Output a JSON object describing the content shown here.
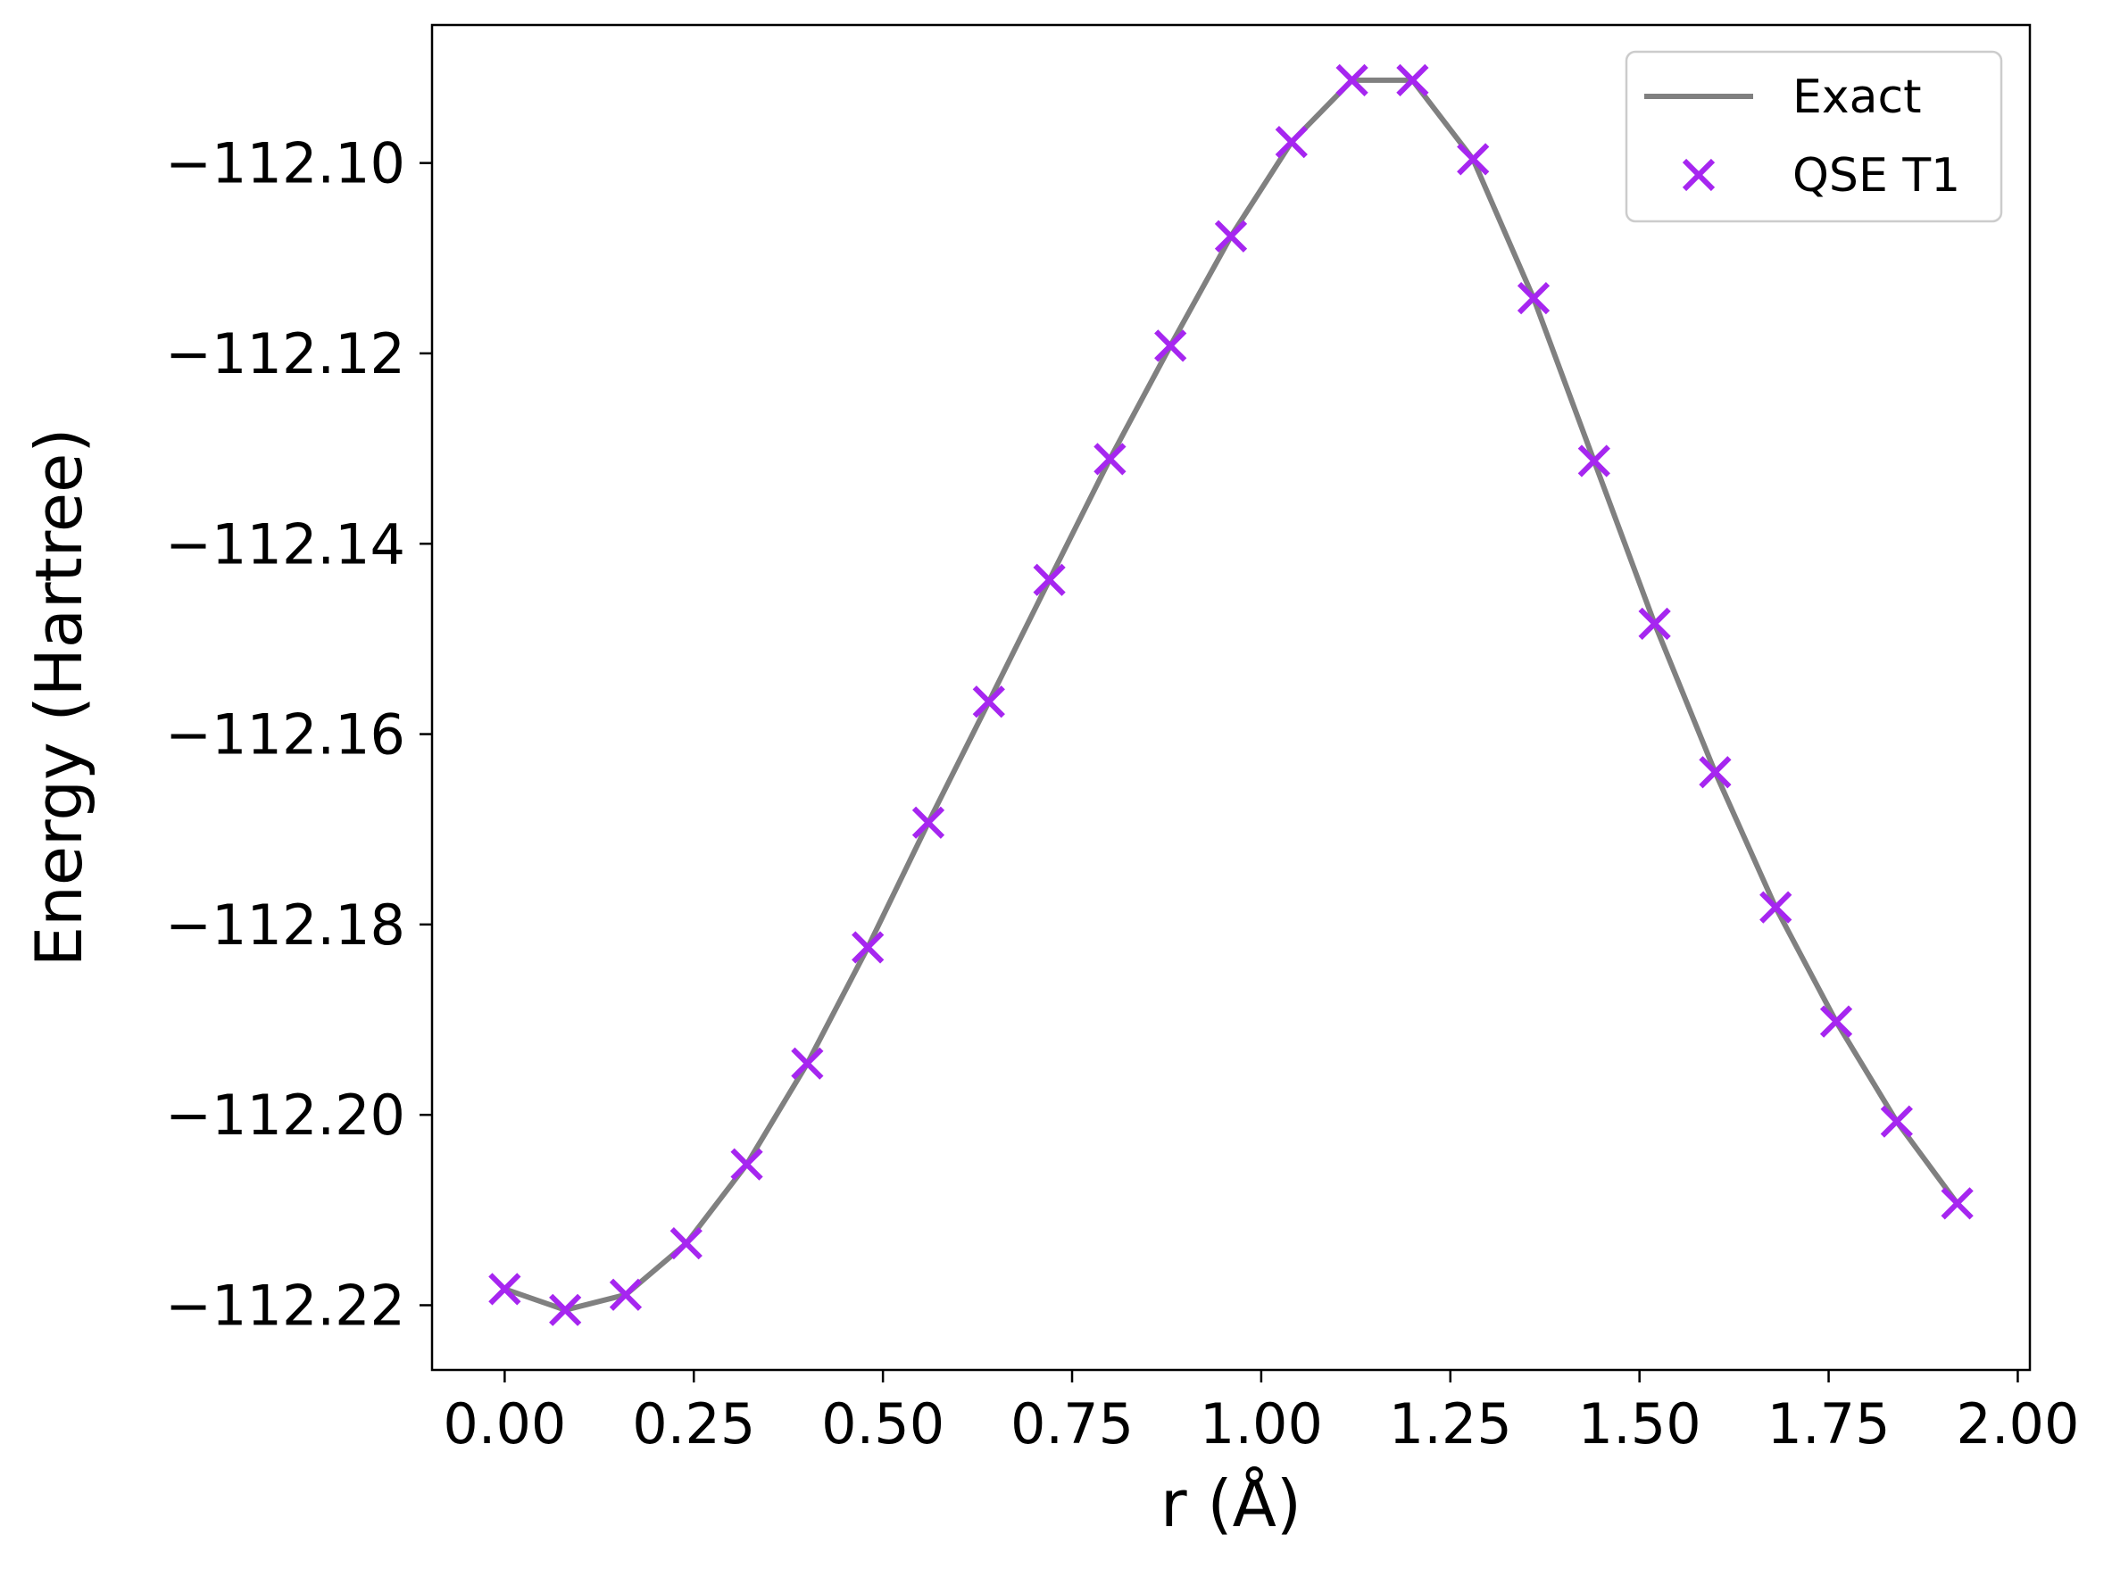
{
  "chart_data": {
    "type": "line",
    "xlabel": "r (Å)",
    "ylabel": "Energy (Hartree)",
    "xlim": [
      -0.096,
      2.016
    ],
    "ylim": [
      -112.2268,
      -112.0855
    ],
    "xticks": [
      0.0,
      0.25,
      0.5,
      0.75,
      1.0,
      1.25,
      1.5,
      1.75,
      2.0
    ],
    "xtick_labels": [
      "0.00",
      "0.25",
      "0.50",
      "0.75",
      "1.00",
      "1.25",
      "1.50",
      "1.75",
      "2.00"
    ],
    "yticks": [
      -112.1,
      -112.12,
      -112.14,
      -112.16,
      -112.18,
      -112.2,
      -112.22
    ],
    "ytick_labels": [
      "−112.10",
      "−112.12",
      "−112.14",
      "−112.16",
      "−112.18",
      "−112.20",
      "−112.22"
    ],
    "grid": false,
    "legend_position": "upper right",
    "series": [
      {
        "name": "Exact",
        "style": "line",
        "color": "#808080",
        "x": [
          0.0,
          0.08,
          0.16,
          0.24,
          0.32,
          0.4,
          0.48,
          0.56,
          0.64,
          0.72,
          0.8,
          0.88,
          0.96,
          1.04,
          1.12,
          1.2,
          1.28,
          1.36,
          1.44,
          1.52,
          1.6,
          1.68,
          1.76,
          1.84,
          1.92
        ],
        "y": [
          -112.2183,
          -112.2205,
          -112.2189,
          -112.2135,
          -112.2052,
          -112.1946,
          -112.1824,
          -112.1693,
          -112.1566,
          -112.1438,
          -112.1311,
          -112.1192,
          -112.1077,
          -112.0978,
          -112.0913,
          -112.0913,
          -112.0996,
          -112.1142,
          -112.1313,
          -112.1484,
          -112.164,
          -112.1782,
          -112.1902,
          -112.2007,
          -112.2093
        ]
      },
      {
        "name": "QSE T1",
        "style": "marker-x",
        "color": "#a626f0",
        "x": [
          0.0,
          0.08,
          0.16,
          0.24,
          0.32,
          0.4,
          0.48,
          0.56,
          0.64,
          0.72,
          0.8,
          0.88,
          0.96,
          1.04,
          1.12,
          1.2,
          1.28,
          1.36,
          1.44,
          1.52,
          1.6,
          1.68,
          1.76,
          1.84,
          1.92
        ],
        "y": [
          -112.2183,
          -112.2205,
          -112.2189,
          -112.2135,
          -112.2052,
          -112.1946,
          -112.1824,
          -112.1693,
          -112.1566,
          -112.1438,
          -112.1311,
          -112.1192,
          -112.1077,
          -112.0978,
          -112.0913,
          -112.0913,
          -112.0996,
          -112.1142,
          -112.1313,
          -112.1484,
          -112.164,
          -112.1782,
          -112.1902,
          -112.2007,
          -112.2093
        ]
      }
    ]
  }
}
